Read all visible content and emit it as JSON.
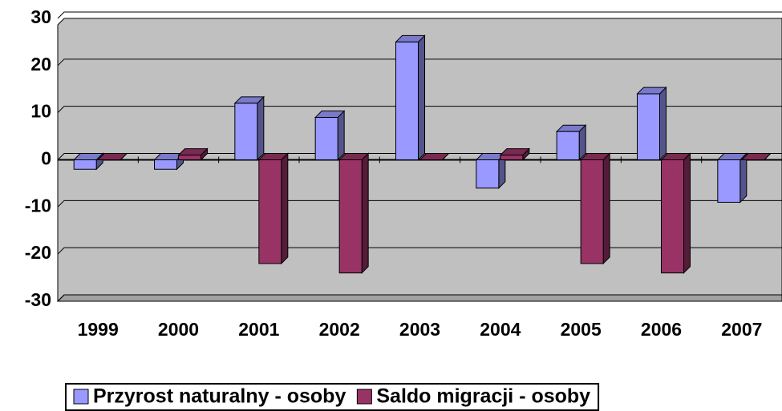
{
  "chart_data": {
    "type": "bar3d",
    "categories": [
      "1999",
      "2000",
      "2001",
      "2002",
      "2003",
      "2004",
      "2005",
      "2006",
      "2007"
    ],
    "series": [
      {
        "name": "Przyrost naturalny - osoby",
        "color": "#9999ff",
        "values": [
          -2,
          -2,
          12,
          9,
          25,
          -6,
          6,
          14,
          -9
        ]
      },
      {
        "name": "Saldo migracji - osoby",
        "color": "#993366",
        "values": [
          0,
          1,
          -22,
          -24,
          0,
          1,
          -22,
          -24,
          0
        ]
      }
    ],
    "ylim": [
      -30,
      30
    ],
    "yticks": [
      -30,
      -20,
      -10,
      0,
      10,
      20,
      30
    ],
    "grid": true,
    "legend": "bottom"
  }
}
